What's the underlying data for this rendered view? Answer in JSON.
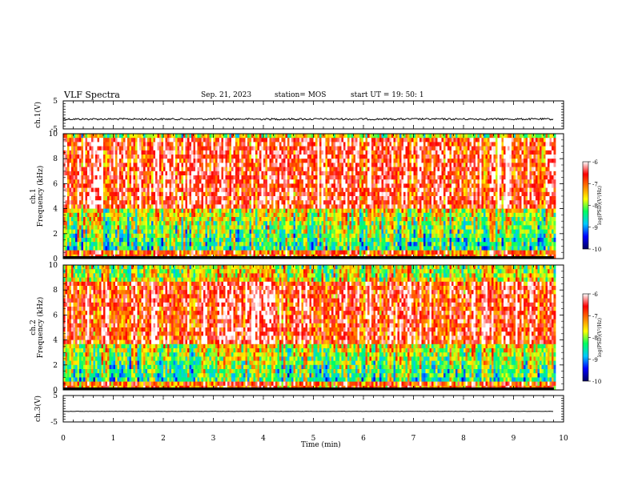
{
  "header": {
    "title": "VLF Spectra",
    "date": "Sep. 21, 2023",
    "station": "station= MOS",
    "start": "start  UT  =   19: 50: 1"
  },
  "chart_data": {
    "type": "heatmap",
    "xlabel": "Time  (min)",
    "xlim": [
      0,
      10
    ],
    "xticks": [
      "0",
      "1",
      "2",
      "3",
      "4",
      "5",
      "6",
      "7",
      "8",
      "9",
      "10"
    ],
    "waveform_top": {
      "ylabel": "ch.1(V)",
      "ylim": [
        -5,
        5
      ],
      "yticks": [
        "5",
        "-5"
      ],
      "baseline_value": -1.5
    },
    "spectrogram_ch1": {
      "ylabel_line1": "ch.1",
      "ylabel_line2": "Frequency (kHz)",
      "ylim": [
        0,
        10
      ],
      "yticks": [
        "0",
        "2",
        "4",
        "6",
        "8",
        "10"
      ],
      "data_end_min": 9.8,
      "intense_band_khz": [
        4,
        9.5
      ]
    },
    "spectrogram_ch2": {
      "ylabel_line1": "ch.2",
      "ylabel_line2": "Frequency (kHz)",
      "ylim": [
        0,
        10
      ],
      "yticks": [
        "0",
        "2",
        "4",
        "6",
        "8",
        "10"
      ],
      "data_end_min": 9.8,
      "intense_band_khz": [
        3.5,
        8.5
      ]
    },
    "waveform_bottom": {
      "ylabel": "ch.3(V)",
      "ylim": [
        -5,
        5
      ],
      "yticks": [
        "5",
        "-5"
      ],
      "baseline_value": -1
    },
    "colorbar": {
      "label": "log(PSD)(V²/Hz)",
      "range": [
        -10,
        -6
      ],
      "ticks": [
        "-6",
        "-7",
        "-8",
        "-9",
        "-10"
      ],
      "colors": [
        "#000060",
        "#0000ff",
        "#00c8ff",
        "#00ff60",
        "#ffff00",
        "#ff8000",
        "#ff0000",
        "#ffffff"
      ]
    }
  }
}
